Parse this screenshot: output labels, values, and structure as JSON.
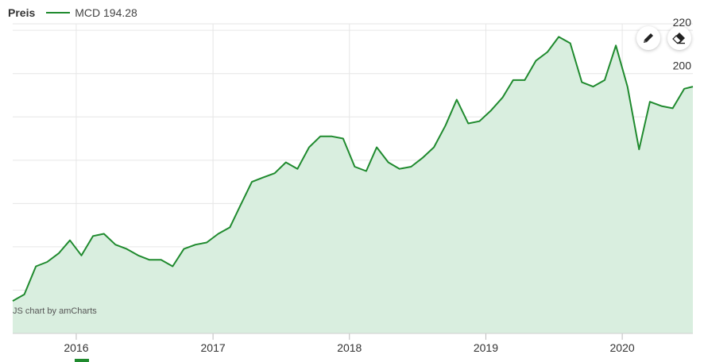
{
  "legend": {
    "title": "Preis",
    "series_label": "MCD 194.28"
  },
  "credit": "JS chart by amCharts",
  "tools": [
    {
      "icon": "pencil-icon"
    },
    {
      "icon": "eraser-icon"
    }
  ],
  "colors": {
    "line": "#1f8a2e",
    "fill": "#d9eedf",
    "grid": "#e6e6e6",
    "text": "#333333"
  },
  "chart_data": {
    "type": "area",
    "ylim": [
      80,
      223
    ],
    "xlim": [
      "2015-07-15",
      "2020-07-08"
    ],
    "y_ticks": [
      80,
      100,
      120,
      140,
      160,
      180,
      200,
      220
    ],
    "x_ticks": [
      {
        "label": "2016",
        "date": "2016-01-01"
      },
      {
        "label": "2017",
        "date": "2017-01-01"
      },
      {
        "label": "2018",
        "date": "2018-01-01"
      },
      {
        "label": "2019",
        "date": "2019-01-01"
      },
      {
        "label": "2020",
        "date": "2020-01-01"
      }
    ],
    "series": [
      {
        "x": [
          "2015-07-15",
          "2015-08-15",
          "2015-09-15",
          "2015-10-15",
          "2015-11-15",
          "2015-12-15",
          "2016-01-15",
          "2016-02-15",
          "2016-03-15",
          "2016-04-15",
          "2016-05-15",
          "2016-06-15",
          "2016-07-15",
          "2016-08-15",
          "2016-09-15",
          "2016-10-15",
          "2016-11-15",
          "2016-12-15",
          "2017-01-15",
          "2017-02-15",
          "2017-03-15",
          "2017-04-15",
          "2017-05-15",
          "2017-06-15",
          "2017-07-15",
          "2017-08-15",
          "2017-09-15",
          "2017-10-15",
          "2017-11-15",
          "2017-12-15",
          "2018-01-15",
          "2018-02-15",
          "2018-03-15",
          "2018-04-15",
          "2018-05-15",
          "2018-06-15",
          "2018-07-15",
          "2018-08-15",
          "2018-09-15",
          "2018-10-15",
          "2018-11-15",
          "2018-12-15",
          "2019-01-15",
          "2019-02-15",
          "2019-03-15",
          "2019-04-15",
          "2019-05-15",
          "2019-06-15",
          "2019-07-15",
          "2019-08-15",
          "2019-09-15",
          "2019-10-15",
          "2019-11-15",
          "2019-12-15",
          "2020-01-15",
          "2020-02-15",
          "2020-03-15",
          "2020-04-15",
          "2020-05-15",
          "2020-06-15",
          "2020-07-08"
        ],
        "values": [
          95,
          98,
          111,
          113,
          117,
          123,
          116,
          125,
          126,
          121,
          119,
          116,
          114,
          114,
          111,
          119,
          121,
          122,
          126,
          129,
          139,
          150,
          152,
          154,
          159,
          156,
          166,
          171,
          171,
          170,
          157,
          155,
          166,
          159,
          156,
          157,
          161,
          166,
          176,
          188,
          177,
          178,
          183,
          189,
          197,
          197,
          206,
          210,
          217,
          214,
          196,
          194,
          197,
          213,
          194,
          165,
          187,
          185,
          184,
          193,
          194
        ]
      }
    ]
  }
}
